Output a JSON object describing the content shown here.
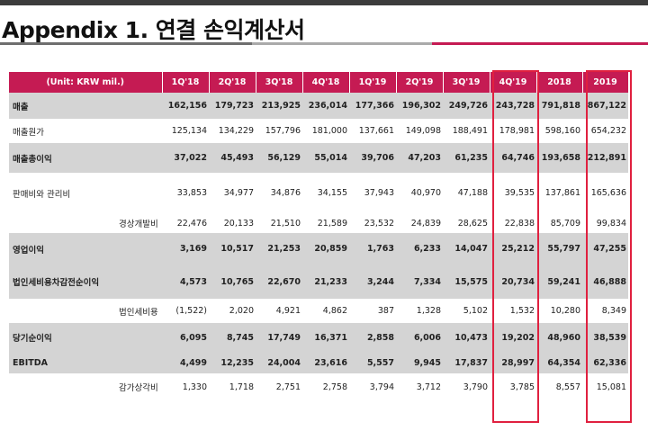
{
  "title": "Appendix 1. 연결 손익계산서",
  "colors": {
    "header_bg": "#c51b53",
    "highlight_row": "#d4d4d4",
    "box_border": "#e0203f"
  },
  "table": {
    "unit_label": "(Unit: KRW mil.)",
    "columns": [
      "1Q'18",
      "2Q'18",
      "3Q'18",
      "4Q'18",
      "1Q'19",
      "2Q'19",
      "3Q'19",
      "4Q'19",
      "2018",
      "2019"
    ],
    "rows": [
      {
        "label": "매출",
        "values": [
          "162,156",
          "179,723",
          "213,925",
          "236,014",
          "177,366",
          "196,302",
          "249,726",
          "243,728",
          "791,818",
          "867,122"
        ]
      },
      {
        "label": "매출원가",
        "values": [
          "125,134",
          "134,229",
          "157,796",
          "181,000",
          "137,661",
          "149,098",
          "188,491",
          "178,981",
          "598,160",
          "654,232"
        ]
      },
      {
        "label": "매출총이익",
        "values": [
          "37,022",
          "45,493",
          "56,129",
          "55,014",
          "39,706",
          "47,203",
          "61,235",
          "64,746",
          "193,658",
          "212,891"
        ]
      },
      {
        "label": "판매비와 관리비",
        "values": [
          "33,853",
          "34,977",
          "34,876",
          "34,155",
          "37,943",
          "40,970",
          "47,188",
          "39,535",
          "137,861",
          "165,636"
        ]
      },
      {
        "label": "경상개발비",
        "values": [
          "22,476",
          "20,133",
          "21,510",
          "21,589",
          "23,532",
          "24,839",
          "28,625",
          "22,838",
          "85,709",
          "99,834"
        ]
      },
      {
        "label": "영업이익",
        "values": [
          "3,169",
          "10,517",
          "21,253",
          "20,859",
          "1,763",
          "6,233",
          "14,047",
          "25,212",
          "55,797",
          "47,255"
        ]
      },
      {
        "label": "법인세비용차감전순이익",
        "values": [
          "4,573",
          "10,765",
          "22,670",
          "21,233",
          "3,244",
          "7,334",
          "15,575",
          "20,734",
          "59,241",
          "46,888"
        ]
      },
      {
        "label": "법인세비용",
        "values": [
          "(1,522)",
          "2,020",
          "4,921",
          "4,862",
          "387",
          "1,328",
          "5,102",
          "1,532",
          "10,280",
          "8,349"
        ]
      },
      {
        "label": "당기순이익",
        "values": [
          "6,095",
          "8,745",
          "17,749",
          "16,371",
          "2,858",
          "6,006",
          "10,473",
          "19,202",
          "48,960",
          "38,539"
        ]
      },
      {
        "label": "EBITDA",
        "values": [
          "4,499",
          "12,235",
          "24,004",
          "23,616",
          "5,557",
          "9,945",
          "17,837",
          "28,997",
          "64,354",
          "62,336"
        ]
      },
      {
        "label": "감가상각비",
        "values": [
          "1,330",
          "1,718",
          "2,751",
          "2,758",
          "3,794",
          "3,712",
          "3,790",
          "3,785",
          "8,557",
          "15,081"
        ]
      }
    ]
  }
}
